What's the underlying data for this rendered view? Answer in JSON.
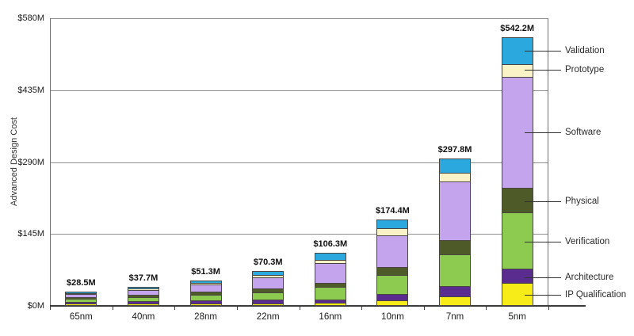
{
  "chart_data": {
    "type": "bar",
    "variant": "stacked",
    "title": "",
    "xlabel": "",
    "ylabel": "Advanced Design Cost",
    "ylim": [
      0,
      580
    ],
    "yticks": [
      {
        "label": "$0M",
        "value": 0
      },
      {
        "label": "$145M",
        "value": 145
      },
      {
        "label": "$290M",
        "value": 290
      },
      {
        "label": "$435M",
        "value": 435
      },
      {
        "label": "$580M",
        "value": 580
      }
    ],
    "gridlines": [
      145,
      290,
      435,
      580
    ],
    "grid": true,
    "legend_position": "right",
    "categories": [
      "65nm",
      "40nm",
      "28nm",
      "22nm",
      "16nm",
      "10nm",
      "7nm",
      "5nm"
    ],
    "totals": [
      28.5,
      37.7,
      51.3,
      70.3,
      106.3,
      174.4,
      297.8,
      542.2
    ],
    "total_labels": [
      "$28.5M",
      "$37.7M",
      "$51.3M",
      "$70.3M",
      "$106.3M",
      "$174.4M",
      "$297.8M",
      "$542.2M"
    ],
    "series": [
      {
        "name": "IP Qualification",
        "color": "#F8EC18",
        "values": [
          2.0,
          2.5,
          3.0,
          2.5,
          3.4,
          8.0,
          16.9,
          44.1
        ]
      },
      {
        "name": "Architecture",
        "color": "#5B2C90",
        "values": [
          3.0,
          4.0,
          5.0,
          6.3,
          5.8,
          13.3,
          20.5,
          27.1
        ]
      },
      {
        "name": "Verification",
        "color": "#8CCB50",
        "values": [
          8.5,
          10.7,
          14.0,
          16.6,
          27.0,
          38.8,
          64.5,
          115.2
        ]
      },
      {
        "name": "Physical",
        "color": "#4E5A28",
        "values": [
          3.5,
          4.5,
          5.5,
          7.2,
          7.4,
          16.6,
          28.5,
          49.7
        ]
      },
      {
        "name": "Software",
        "color": "#C4A4EC",
        "values": [
          9.0,
          12.5,
          18.0,
          25.5,
          44.3,
          66.6,
          120.9,
          227.3
        ]
      },
      {
        "name": "Prototype",
        "color": "#FAF3C8",
        "values": [
          1.0,
          1.5,
          2.3,
          4.4,
          5.6,
          12.8,
          18.0,
          24.3
        ]
      },
      {
        "name": "Validation",
        "color": "#2BA9DF",
        "values": [
          1.5,
          2.0,
          3.5,
          7.8,
          12.8,
          18.3,
          28.5,
          54.5
        ]
      }
    ],
    "legend": [
      "Validation",
      "Prototype",
      "Software",
      "Physical",
      "Verification",
      "Architecture",
      "IP Qualification"
    ]
  }
}
